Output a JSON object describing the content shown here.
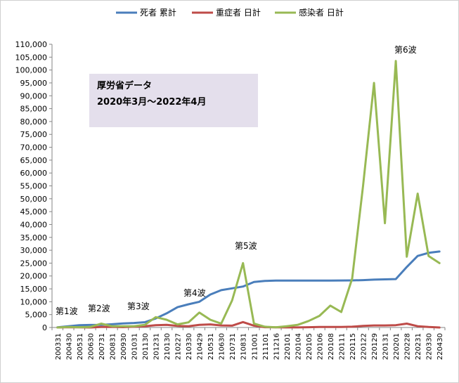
{
  "chart_data": {
    "type": "line",
    "legend": {
      "placement": "top",
      "entries": [
        "死者 累計",
        "重症者 日計",
        "感染者 日計"
      ]
    },
    "ylim": [
      0,
      110000
    ],
    "yticks": [
      "0",
      "5,000",
      "10,000",
      "15,000",
      "20,000",
      "25,000",
      "30,000",
      "35,000",
      "40,000",
      "45,000",
      "50,000",
      "55,000",
      "60,000",
      "65,000",
      "70,000",
      "75,000",
      "80,000",
      "85,000",
      "90,000",
      "95,000",
      "100,000",
      "105,000",
      "110,000"
    ],
    "grid": false,
    "x": [
      "200331",
      "200430",
      "200531",
      "200630",
      "200731",
      "200831",
      "200930",
      "201031",
      "201130",
      "201231",
      "210130",
      "210227",
      "210330",
      "210429",
      "210531",
      "210630",
      "210731",
      "210831",
      "211001",
      "211101",
      "211216",
      "220101",
      "220104",
      "220105",
      "220106",
      "220108",
      "220111",
      "220115",
      "220122",
      "220129",
      "220131",
      "220201",
      "220228",
      "220231",
      "220330",
      "220430"
    ],
    "series": [
      {
        "name": "死者 累計",
        "color": "#4a7ebb",
        "values": [
          60,
          460,
          880,
          980,
          1000,
          1250,
          1550,
          1750,
          2050,
          3500,
          5500,
          7900,
          9000,
          10000,
          12800,
          14500,
          15200,
          15900,
          17700,
          18100,
          18200,
          18200,
          18200,
          18200,
          18200,
          18200,
          18250,
          18300,
          18400,
          18600,
          18700,
          18800,
          23500,
          27800,
          29000,
          29500
        ]
      },
      {
        "name": "重症者 日計",
        "color": "#be4b48",
        "values": [
          0,
          100,
          50,
          0,
          200,
          250,
          150,
          300,
          500,
          900,
          1000,
          600,
          500,
          1000,
          1200,
          800,
          700,
          2100,
          700,
          100,
          50,
          20,
          30,
          100,
          200,
          200,
          200,
          300,
          600,
          800,
          800,
          900,
          1500,
          500,
          200,
          0
        ]
      },
      {
        "name": "感染者 日計",
        "color": "#98b954",
        "values": [
          0,
          200,
          100,
          200,
          1500,
          500,
          500,
          500,
          1000,
          4000,
          3000,
          1200,
          2000,
          5800,
          3000,
          1500,
          10500,
          25000,
          1500,
          300,
          50,
          500,
          1000,
          2500,
          4500,
          8500,
          6000,
          19000,
          55000,
          95000,
          40500,
          103500,
          27500,
          52000,
          27800,
          25000
        ]
      }
    ],
    "annotations": {
      "wave1": "第1波",
      "wave2": "第2波",
      "wave3": "第3波",
      "wave4": "第4波",
      "wave5": "第5波",
      "wave6": "第6波"
    },
    "note": {
      "line1": "厚労省データ",
      "line2": "2020年3月～2022年4月",
      "background": "#e4dfec"
    }
  }
}
